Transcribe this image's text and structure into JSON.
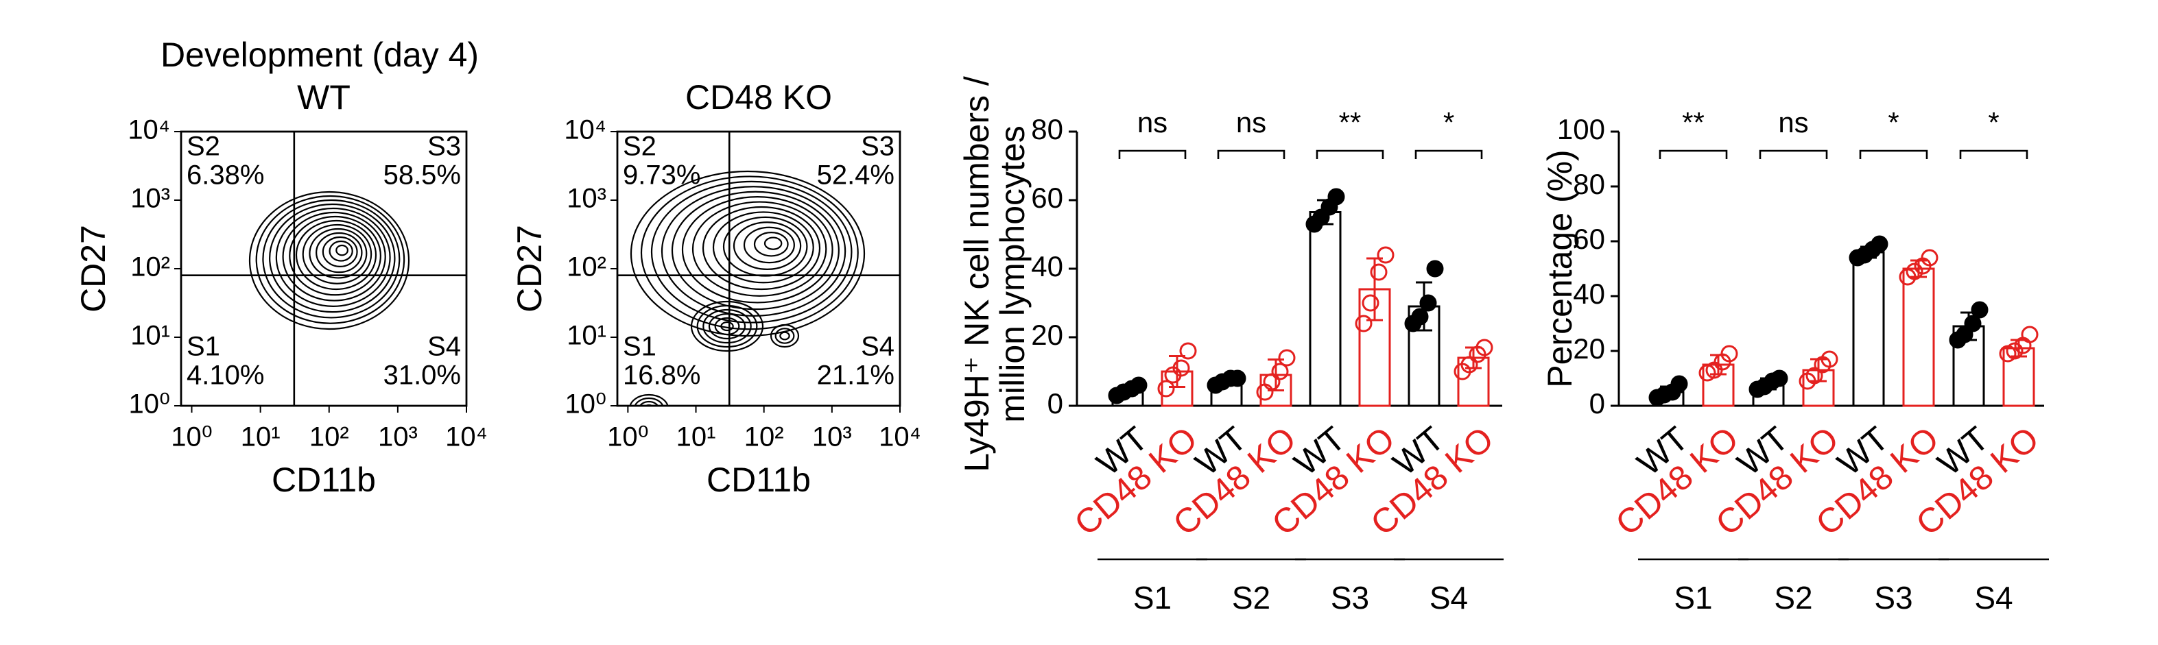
{
  "chart_data": [
    {
      "type": "flow",
      "title": "Development (day 4)",
      "subtitle": "WT",
      "xlabel": "CD11b",
      "ylabel": "CD27",
      "log_scale": true,
      "xlim": [
        0.7,
        10000
      ],
      "ylim": [
        1,
        10000
      ],
      "xticks": [
        {
          "value": 1,
          "label": "10⁰"
        },
        {
          "value": 10,
          "label": "10¹"
        },
        {
          "value": 100,
          "label": "10²"
        },
        {
          "value": 1000,
          "label": "10³"
        },
        {
          "value": 10000,
          "label": "10⁴"
        }
      ],
      "yticks": [
        {
          "value": 1,
          "label": "10⁰"
        },
        {
          "value": 10,
          "label": "10¹"
        },
        {
          "value": 100,
          "label": "10²"
        },
        {
          "value": 1000,
          "label": "10³"
        },
        {
          "value": 10000,
          "label": "10⁴"
        }
      ],
      "quadrant_gate": [
        31,
        80
      ],
      "categories": [
        "S2",
        "S3",
        "S1",
        "S4"
      ],
      "values": [
        6.38,
        58.5,
        4.1,
        31.0
      ],
      "value_labels": [
        "6.38%",
        "58.5%",
        "4.10%",
        "31.0%"
      ]
    },
    {
      "type": "flow",
      "subtitle": "CD48 KO",
      "xlabel": "CD11b",
      "ylabel": "CD27",
      "log_scale": true,
      "xlim": [
        0.7,
        10000
      ],
      "ylim": [
        1,
        10000
      ],
      "xticks": [
        {
          "value": 1,
          "label": "10⁰"
        },
        {
          "value": 10,
          "label": "10¹"
        },
        {
          "value": 100,
          "label": "10²"
        },
        {
          "value": 1000,
          "label": "10³"
        },
        {
          "value": 10000,
          "label": "10⁴"
        }
      ],
      "yticks": [
        {
          "value": 1,
          "label": "10⁰"
        },
        {
          "value": 10,
          "label": "10¹"
        },
        {
          "value": 100,
          "label": "10²"
        },
        {
          "value": 1000,
          "label": "10³"
        },
        {
          "value": 10000,
          "label": "10⁴"
        }
      ],
      "quadrant_gate": [
        31,
        80
      ],
      "categories": [
        "S2",
        "S3",
        "S1",
        "S4"
      ],
      "values": [
        9.73,
        52.4,
        16.8,
        21.1
      ],
      "value_labels": [
        "9.73%",
        "52.4%",
        "16.8%",
        "21.1%"
      ]
    },
    {
      "type": "bar",
      "ylabel": [
        "Ly49H⁺ NK cell numbers /",
        "million lymphocytes"
      ],
      "ylim": [
        0,
        80
      ],
      "yticks": [
        0,
        20,
        40,
        60,
        80
      ],
      "categories": [
        "WT",
        "CD48 KO",
        "WT",
        "CD48 KO",
        "WT",
        "CD48 KO",
        "WT",
        "CD48 KO"
      ],
      "groups": [
        "S1",
        "S2",
        "S3",
        "S4"
      ],
      "colors": [
        "#000000",
        "#e4211f",
        "#000000",
        "#e4211f",
        "#000000",
        "#e4211f",
        "#000000",
        "#e4211f"
      ],
      "values": [
        4.5,
        10,
        7.5,
        9,
        56.5,
        34,
        29,
        14
      ],
      "errors": [
        1.5,
        4.5,
        1,
        4.5,
        3.5,
        9,
        7,
        3
      ],
      "points": [
        [
          3,
          4,
          5,
          6
        ],
        [
          5,
          9,
          11,
          16
        ],
        [
          6,
          7,
          8,
          8
        ],
        [
          4,
          7,
          10,
          14
        ],
        [
          53,
          55,
          58,
          61
        ],
        [
          24,
          30,
          39,
          44
        ],
        [
          24,
          26,
          30,
          40
        ],
        [
          10,
          12,
          15,
          17
        ]
      ],
      "significance": [
        "ns",
        "ns",
        "**",
        "*"
      ]
    },
    {
      "type": "bar",
      "ylabel": "Percentage (%)",
      "ylim": [
        0,
        100
      ],
      "yticks": [
        0,
        20,
        40,
        60,
        80,
        100
      ],
      "categories": [
        "WT",
        "CD48 KO",
        "WT",
        "CD48 KO",
        "WT",
        "CD48 KO",
        "WT",
        "CD48 KO"
      ],
      "groups": [
        "S1",
        "S2",
        "S3",
        "S4"
      ],
      "colors": [
        "#000000",
        "#e4211f",
        "#000000",
        "#e4211f",
        "#000000",
        "#e4211f",
        "#000000",
        "#e4211f"
      ],
      "values": [
        5,
        15,
        8,
        13,
        56,
        50,
        29,
        21
      ],
      "errors": [
        2,
        3.5,
        2,
        4,
        2,
        3,
        5,
        3
      ],
      "points": [
        [
          3,
          4,
          5,
          8
        ],
        [
          12,
          13,
          16,
          19
        ],
        [
          6,
          7,
          9,
          10
        ],
        [
          9,
          11,
          15,
          17
        ],
        [
          54,
          55,
          57,
          59
        ],
        [
          47,
          49,
          51,
          54
        ],
        [
          24,
          26,
          30,
          35
        ],
        [
          19,
          20,
          22,
          26
        ]
      ],
      "significance": [
        "**",
        "ns",
        "*",
        "*"
      ]
    }
  ]
}
